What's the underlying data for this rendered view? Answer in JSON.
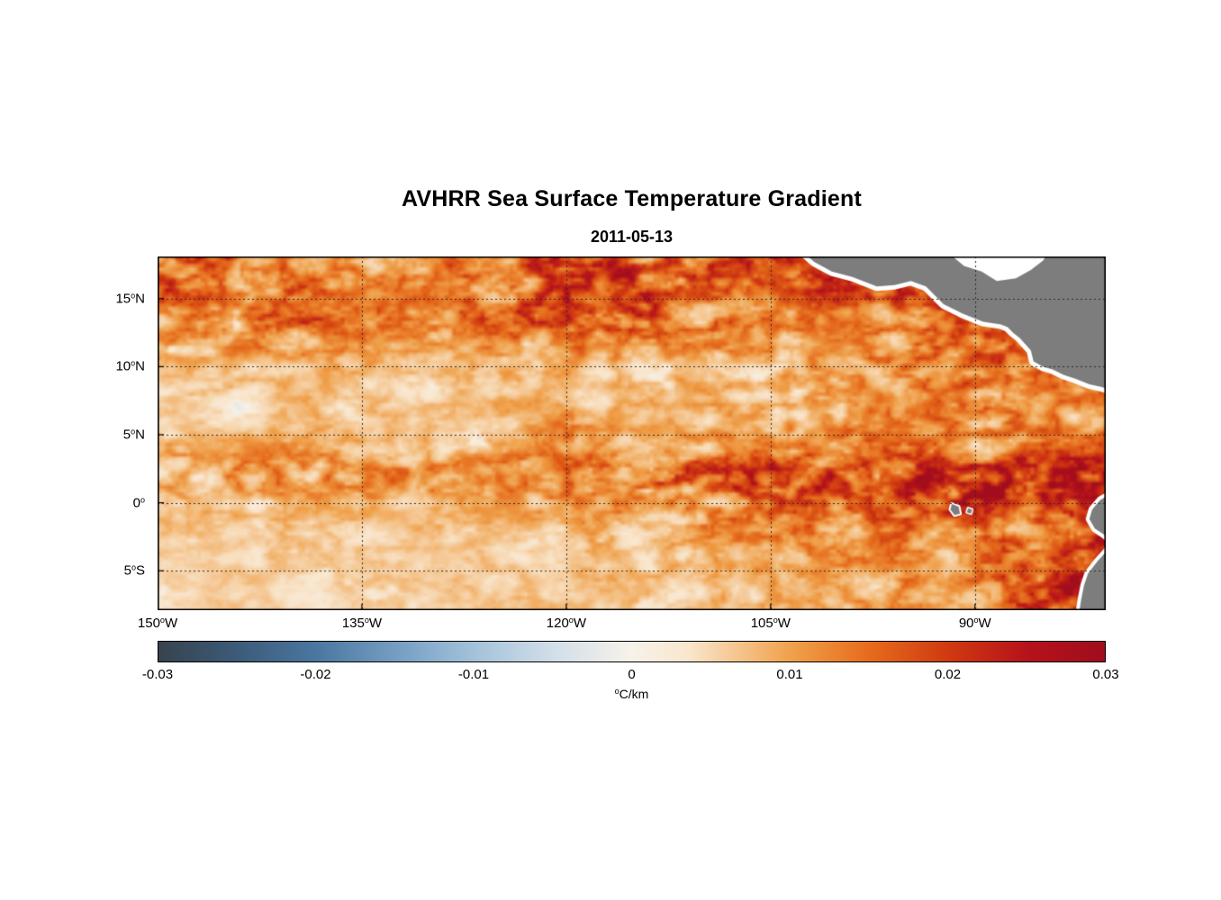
{
  "title": "AVHRR Sea Surface Temperature Gradient",
  "subtitle": "2011-05-13",
  "axes": {
    "deg_sup": "o",
    "lat_ticks": [
      {
        "label": "15",
        "suffix": "N",
        "lat": 15
      },
      {
        "label": "10",
        "suffix": "N",
        "lat": 10
      },
      {
        "label": "5",
        "suffix": "N",
        "lat": 5
      },
      {
        "label": "0",
        "suffix": "",
        "lat": 0
      },
      {
        "label": "5",
        "suffix": "S",
        "lat": -5
      }
    ],
    "lon_ticks": [
      {
        "label": "150",
        "suffix": "W",
        "lon": -150
      },
      {
        "label": "135",
        "suffix": "W",
        "lon": -135
      },
      {
        "label": "120",
        "suffix": "W",
        "lon": -120
      },
      {
        "label": "105",
        "suffix": "W",
        "lon": -105
      },
      {
        "label": "90",
        "suffix": "W",
        "lon": -90
      }
    ]
  },
  "colorbar": {
    "tick_labels": [
      "-0.03",
      "-0.02",
      "-0.01",
      "0",
      "0.01",
      "0.02",
      "0.03"
    ],
    "unit_sup": "o",
    "unit_main": "C/km",
    "min": -0.03,
    "max": 0.03,
    "stops": [
      [
        0.0,
        "#37434e"
      ],
      [
        0.08,
        "#3c5a77"
      ],
      [
        0.1667,
        "#4a77a0"
      ],
      [
        0.27,
        "#7fa6c9"
      ],
      [
        0.3333,
        "#a3c2da"
      ],
      [
        0.42,
        "#d3dfe9"
      ],
      [
        0.5,
        "#f7f2ea"
      ],
      [
        0.56,
        "#f9e6cd"
      ],
      [
        0.6667,
        "#f0a24c"
      ],
      [
        0.75,
        "#e66c1c"
      ],
      [
        0.8333,
        "#d03a10"
      ],
      [
        0.92,
        "#b5121b"
      ],
      [
        1.0,
        "#a00d1d"
      ]
    ]
  },
  "map": {
    "land_color": "#7d7d7d",
    "coast_halo_color": "#ffffff",
    "grid_color": "#2b2b2b"
  },
  "chart_data": {
    "type": "heatmap",
    "title": "AVHRR Sea Surface Temperature Gradient",
    "subtitle": "2011-05-13",
    "units": "°C/km",
    "value_range": [
      -0.03,
      0.03
    ],
    "lon_range": [
      -150,
      -80.4
    ],
    "lat_range": [
      -7.9,
      18.1
    ],
    "lon_tick_values": [
      -150,
      -135,
      -120,
      -105,
      -90
    ],
    "lat_tick_values": [
      15,
      10,
      5,
      0,
      -5
    ],
    "grid_lons": [
      -135,
      -120,
      -105,
      -90
    ],
    "grid_lats": [
      15,
      10,
      5,
      0,
      -5
    ],
    "lon_grid": [
      -150,
      -145,
      -140,
      -135,
      -130,
      -125,
      -120,
      -115,
      -110,
      -105,
      -100,
      -95,
      -90,
      -85,
      -80
    ],
    "lat_grid": [
      18,
      16,
      14,
      12,
      10,
      8,
      6,
      4,
      2,
      0,
      -2,
      -4,
      -6,
      -8
    ],
    "gradient_magnitude_C_per_km": [
      [
        0.016,
        0.012,
        0.009,
        0.011,
        0.01,
        0.012,
        0.016,
        0.015,
        0.014,
        0.015,
        0.012,
        0.008,
        0.008,
        0.008,
        0.008
      ],
      [
        0.014,
        0.01,
        0.012,
        0.009,
        0.008,
        0.012,
        0.014,
        0.016,
        0.012,
        0.013,
        0.016,
        0.016,
        0.008,
        0.008,
        0.008
      ],
      [
        0.01,
        0.009,
        0.014,
        0.01,
        0.009,
        0.013,
        0.016,
        0.014,
        0.012,
        0.01,
        0.009,
        0.012,
        0.014,
        0.012,
        0.01
      ],
      [
        0.008,
        0.01,
        0.009,
        0.008,
        0.007,
        0.009,
        0.011,
        0.01,
        0.009,
        0.008,
        0.008,
        0.009,
        0.012,
        0.013,
        0.011
      ],
      [
        0.005,
        0.005,
        0.006,
        0.005,
        0.005,
        0.006,
        0.006,
        0.006,
        0.007,
        0.007,
        0.008,
        0.01,
        0.013,
        0.012,
        0.011
      ],
      [
        0.004,
        0.004,
        0.005,
        0.004,
        0.004,
        0.005,
        0.005,
        0.005,
        0.006,
        0.006,
        0.007,
        0.009,
        0.011,
        0.01,
        0.012
      ],
      [
        0.004,
        0.004,
        0.004,
        0.005,
        0.004,
        0.005,
        0.009,
        0.005,
        0.006,
        0.007,
        0.008,
        0.009,
        0.01,
        0.009,
        0.01
      ],
      [
        0.006,
        0.006,
        0.007,
        0.006,
        0.006,
        0.007,
        0.008,
        0.007,
        0.008,
        0.009,
        0.01,
        0.01,
        0.009,
        0.01,
        0.011
      ],
      [
        0.008,
        0.009,
        0.01,
        0.009,
        0.01,
        0.01,
        0.012,
        0.014,
        0.015,
        0.016,
        0.017,
        0.018,
        0.02,
        0.022,
        0.024
      ],
      [
        0.005,
        0.006,
        0.006,
        0.006,
        0.005,
        0.006,
        0.008,
        0.009,
        0.01,
        0.012,
        0.012,
        0.013,
        0.018,
        0.014,
        0.016
      ],
      [
        0.004,
        0.004,
        0.005,
        0.004,
        0.004,
        0.005,
        0.006,
        0.007,
        0.008,
        0.009,
        0.01,
        0.011,
        0.01,
        0.012,
        0.016
      ],
      [
        0.003,
        0.003,
        0.004,
        0.004,
        0.003,
        0.004,
        0.005,
        0.005,
        0.006,
        0.007,
        0.008,
        0.009,
        0.01,
        0.012,
        0.018
      ],
      [
        0.003,
        0.003,
        0.003,
        0.004,
        0.003,
        0.004,
        0.004,
        0.005,
        0.005,
        0.006,
        0.007,
        0.008,
        0.01,
        0.014,
        0.022
      ],
      [
        0.003,
        0.003,
        0.003,
        0.003,
        0.003,
        0.004,
        0.004,
        0.004,
        0.005,
        0.005,
        0.006,
        0.008,
        0.01,
        0.014,
        0.022
      ]
    ],
    "land_polygons": [
      {
        "name": "central-america",
        "halo": 10,
        "points": [
          [
            -102.6,
            18.4
          ],
          [
            -101.8,
            17.7
          ],
          [
            -100.5,
            17.0
          ],
          [
            -99.0,
            16.6
          ],
          [
            -97.2,
            15.9
          ],
          [
            -95.9,
            16.0
          ],
          [
            -94.7,
            16.3
          ],
          [
            -93.6,
            15.9
          ],
          [
            -92.3,
            14.6
          ],
          [
            -90.9,
            13.9
          ],
          [
            -89.4,
            13.3
          ],
          [
            -88.1,
            13.1
          ],
          [
            -87.6,
            12.9
          ],
          [
            -87.2,
            12.5
          ],
          [
            -86.7,
            12.1
          ],
          [
            -85.9,
            11.2
          ],
          [
            -85.7,
            10.4
          ],
          [
            -85.0,
            10.0
          ],
          [
            -84.3,
            9.8
          ],
          [
            -83.5,
            9.4
          ],
          [
            -82.6,
            9.1
          ],
          [
            -81.6,
            8.7
          ],
          [
            -80.7,
            8.5
          ],
          [
            -80.1,
            8.3
          ],
          [
            -80.1,
            18.4
          ]
        ]
      },
      {
        "name": "ecuador-coast",
        "halo": 8,
        "points": [
          [
            -80.1,
            0.6
          ],
          [
            -80.8,
            0.2
          ],
          [
            -81.4,
            -0.5
          ],
          [
            -81.6,
            -1.2
          ],
          [
            -81.2,
            -1.9
          ],
          [
            -80.6,
            -2.3
          ],
          [
            -80.1,
            -2.7
          ]
        ]
      },
      {
        "name": "peru-coast",
        "halo": 8,
        "points": [
          [
            -80.1,
            -3.3
          ],
          [
            -81.0,
            -4.3
          ],
          [
            -81.7,
            -5.2
          ],
          [
            -82.0,
            -6.1
          ],
          [
            -82.2,
            -7.1
          ],
          [
            -82.4,
            -8.4
          ],
          [
            -80.1,
            -8.4
          ]
        ]
      },
      {
        "name": "galapagos-isabela",
        "halo": 4,
        "points": [
          [
            -91.7,
            -0.1
          ],
          [
            -91.2,
            -0.3
          ],
          [
            -91.1,
            -0.8
          ],
          [
            -91.5,
            -0.9
          ],
          [
            -91.8,
            -0.5
          ]
        ]
      },
      {
        "name": "galapagos-santa-cruz",
        "halo": 3,
        "points": [
          [
            -90.5,
            -0.4
          ],
          [
            -90.2,
            -0.5
          ],
          [
            -90.3,
            -0.8
          ],
          [
            -90.6,
            -0.7
          ]
        ]
      }
    ],
    "ocean_gaps": [
      {
        "name": "caribbean-no-data",
        "points": [
          [
            -92.0,
            18.4
          ],
          [
            -90.8,
            17.4
          ],
          [
            -89.5,
            17.0
          ],
          [
            -88.4,
            16.3
          ],
          [
            -87.0,
            16.5
          ],
          [
            -85.9,
            17.1
          ],
          [
            -85.0,
            17.8
          ],
          [
            -84.6,
            18.4
          ]
        ]
      }
    ]
  }
}
